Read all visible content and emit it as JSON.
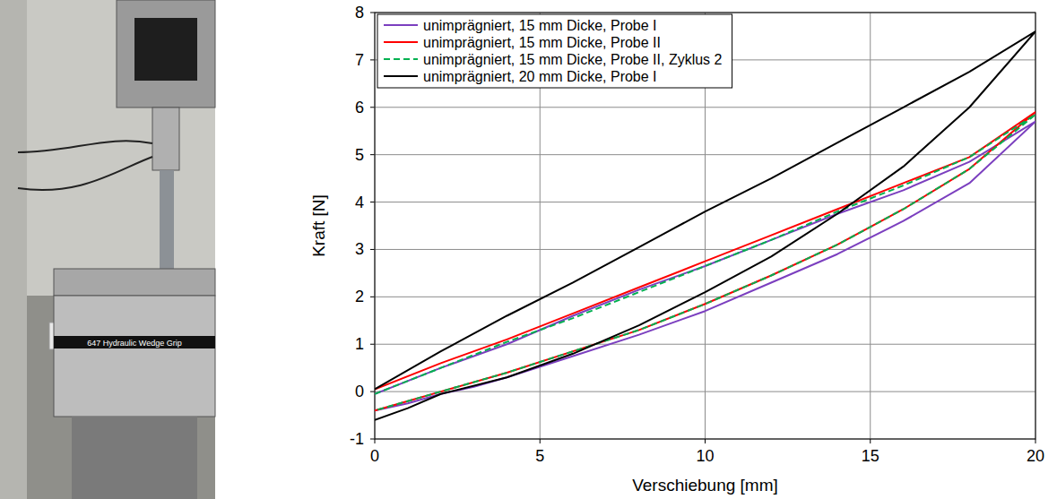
{
  "chart_data": {
    "type": "line",
    "x_label": "Verschiebung [mm]",
    "y_label": "Kraft [N]",
    "xlim": [
      0,
      20
    ],
    "xticks": [
      0,
      5,
      10,
      15,
      20
    ],
    "ylim": [
      -1,
      8
    ],
    "yticks": [
      -1,
      0,
      1,
      2,
      3,
      4,
      5,
      6,
      7,
      8
    ],
    "grid": true,
    "legend": "upper left",
    "series": [
      {
        "name": "unimprägniert, 15 mm Dicke, Probe I",
        "color": "#7b3fbf",
        "line_style": "solid",
        "x": [
          0,
          2,
          4,
          6,
          8,
          10,
          12,
          14,
          16,
          18,
          20,
          18,
          16,
          14,
          12,
          10,
          8,
          6,
          4,
          3,
          2,
          1,
          0
        ],
        "values": [
          -0.05,
          0.5,
          1.0,
          1.6,
          2.15,
          2.65,
          3.2,
          3.75,
          4.25,
          4.85,
          5.7,
          4.4,
          3.6,
          2.9,
          2.3,
          1.7,
          1.2,
          0.75,
          0.3,
          0.1,
          -0.05,
          -0.25,
          -0.4
        ]
      },
      {
        "name": "unimprägniert, 15 mm Dicke, Probe II",
        "color": "#ff0000",
        "line_style": "solid",
        "x": [
          0,
          2,
          4,
          6,
          8,
          10,
          12,
          14,
          16,
          18,
          20,
          18,
          16,
          14,
          12,
          10,
          8,
          6,
          4,
          2,
          1,
          0
        ],
        "values": [
          0.05,
          0.6,
          1.1,
          1.65,
          2.2,
          2.75,
          3.3,
          3.85,
          4.4,
          4.95,
          5.9,
          4.7,
          3.85,
          3.1,
          2.45,
          1.85,
          1.3,
          0.85,
          0.4,
          0.0,
          -0.2,
          -0.4
        ]
      },
      {
        "name": "unimprägniert, 15 mm Dicke, Probe II, Zyklus 2",
        "color": "#00b050",
        "line_style": "dashed",
        "x": [
          0,
          2,
          4,
          6,
          8,
          10,
          12,
          14,
          16,
          18,
          20,
          18,
          16,
          14,
          12,
          10,
          8,
          6,
          4,
          2,
          1,
          0
        ],
        "values": [
          -0.05,
          0.5,
          1.05,
          1.55,
          2.1,
          2.65,
          3.2,
          3.8,
          4.35,
          4.95,
          5.85,
          4.7,
          3.85,
          3.1,
          2.45,
          1.85,
          1.3,
          0.85,
          0.4,
          0.0,
          -0.2,
          -0.4
        ]
      },
      {
        "name": "unimprägniert, 20 mm Dicke, Probe I",
        "color": "#000000",
        "line_style": "solid",
        "x": [
          0,
          2,
          4,
          6,
          8,
          10,
          12,
          14,
          16,
          18,
          20,
          18,
          16,
          14,
          12,
          10,
          8,
          6,
          4,
          2,
          1,
          0
        ],
        "values": [
          0.05,
          0.85,
          1.6,
          2.3,
          3.05,
          3.8,
          4.5,
          5.25,
          6.0,
          6.75,
          7.6,
          6.0,
          4.75,
          3.75,
          2.85,
          2.1,
          1.4,
          0.8,
          0.3,
          -0.05,
          -0.35,
          -0.6
        ]
      }
    ]
  },
  "photo": {
    "label": "647 Hydraulic Wedge Grip"
  }
}
